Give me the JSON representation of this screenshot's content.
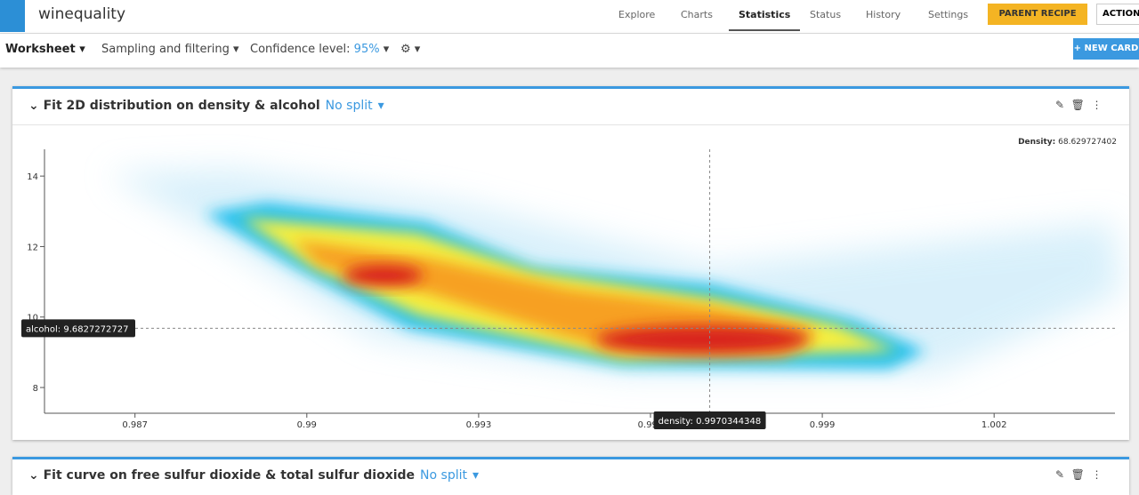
{
  "header": {
    "project": "winequality",
    "nav": [
      "Explore",
      "Charts",
      "Statistics",
      "Status",
      "History",
      "Settings"
    ],
    "parent_recipe": "PARENT RECIPE",
    "actions": "ACTIONS"
  },
  "toolbar": {
    "worksheet": "Worksheet",
    "sampling": "Sampling and filtering",
    "confidence_label": "Confidence level:",
    "confidence_value": "95%",
    "new_card": "+ NEW CARD"
  },
  "card1": {
    "title": "Fit 2D distribution on density & alcohol",
    "split": "No split",
    "density_label": "Density:",
    "density_value": 68.629727402,
    "plot": {
      "xlim": [
        0.98542,
        1.00411
      ],
      "ylim": [
        7.27,
        14.76
      ],
      "xticks": [
        0.987,
        0.99,
        0.993,
        0.996,
        0.999,
        1.002
      ],
      "yticks": [
        8,
        10,
        12,
        14
      ],
      "x_tooltip_label": "density:",
      "x_tooltip_value": 0.9970344348,
      "y_tooltip_label": "alcohol:",
      "y_tooltip_value": 9.6827272727
    }
  },
  "card2": {
    "title": "Fit curve on free sulfur dioxide & total sulfur dioxide",
    "split": "No split"
  }
}
